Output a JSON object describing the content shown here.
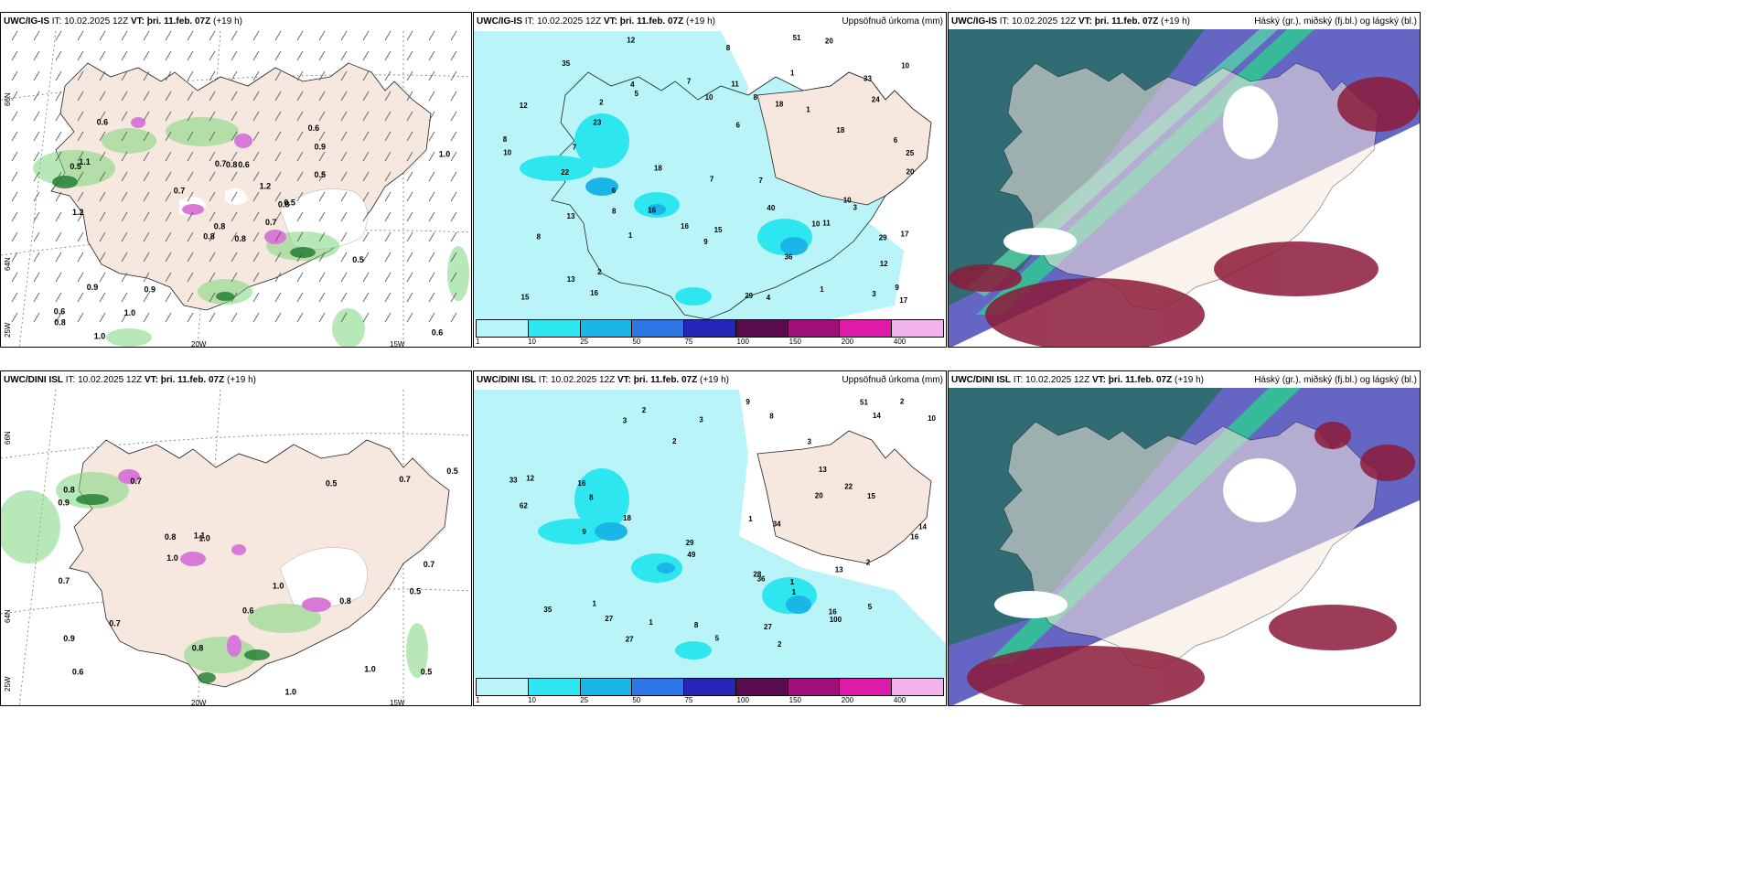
{
  "panels": [
    {
      "id": "p1",
      "title_model": "UWC/IG-IS",
      "title_it": "IT: 10.02.2025 12Z",
      "title_vt": "VT: þri. 11.feb. 07Z",
      "title_h": "(+19 h)",
      "title_right": "",
      "kind": "wind"
    },
    {
      "id": "p2",
      "title_model": "UWC/IG-IS",
      "title_it": "IT: 10.02.2025 12Z",
      "title_vt": "VT: þri. 11.feb. 07Z",
      "title_h": "(+19 h)",
      "title_right": "Uppsöfnuð úrkoma (mm)",
      "kind": "precip"
    },
    {
      "id": "p3",
      "title_model": "UWC/IG-IS",
      "title_it": "IT: 10.02.2025 12Z",
      "title_vt": "VT: þri. 11.feb. 07Z",
      "title_h": "(+19 h)",
      "title_right": "Háský (gr.), miðský (fj.bl.) og lágský (bl.)",
      "kind": "cloud"
    },
    {
      "id": "p4",
      "title_model": "UWC/DINI ISL",
      "title_it": "IT: 10.02.2025 12Z",
      "title_vt": "VT: þri. 11.feb. 07Z",
      "title_h": "(+19 h)",
      "title_right": "",
      "kind": "wind"
    },
    {
      "id": "p5",
      "title_model": "UWC/DINI ISL",
      "title_it": "IT: 10.02.2025 12Z",
      "title_vt": "VT: þri. 11.feb. 07Z",
      "title_h": "(+19 h)",
      "title_right": "Uppsöfnuð úrkoma (mm)",
      "kind": "precip"
    },
    {
      "id": "p6",
      "title_model": "UWC/DINI ISL",
      "title_it": "IT: 10.02.2025 12Z",
      "title_vt": "VT: þri. 11.feb. 07Z",
      "title_h": "(+19 h)",
      "title_right": "Háský (gr.), miðský (fj.bl.) og lágský (bl.)",
      "kind": "cloud"
    }
  ],
  "graticule": {
    "lat_66": "66N",
    "lat_64": "64N",
    "lon_25": "25W",
    "lon_20": "20W",
    "lon_15": "15W"
  },
  "precip_colorbar": {
    "ticks": [
      "1",
      "10",
      "25",
      "50",
      "75",
      "100",
      "150",
      "200",
      "400"
    ],
    "colors": [
      "#b9f5f8",
      "#2ee6f0",
      "#1bb6e8",
      "#2d78e6",
      "#2626b8",
      "#5a0a4e",
      "#a0107a",
      "#e01aa8",
      "#f3b3ee"
    ]
  },
  "colors": {
    "land": "#f6e8de",
    "ocean": "#ffffff",
    "precip_light": "#b9f5f8",
    "precip_mid": "#2ee6f0",
    "precip_heavy": "#1bb6e8",
    "cloud_high": "#2bcf8f",
    "cloud_mid": "#4a4ab8",
    "cloud_low": "#8c1a3a",
    "wind_green": "#7dd67d",
    "snow_pink": "#d879d8"
  },
  "wind_labels_top": [
    "0.8",
    "0.5",
    "0.8",
    "0.6",
    "0.8",
    "0.9",
    "0.6",
    "0.6",
    "0.9",
    "0.7",
    "0.6",
    "0.6",
    "1.2",
    "1.0",
    "0.8",
    "0.5",
    "1.0",
    "0.7",
    "1.2",
    "0.9",
    "0.7",
    "0.8",
    "1.0",
    "0.8",
    "0.5",
    "0.5",
    "1.1"
  ],
  "wind_labels_bottom": [
    "0.8",
    "0.5",
    "0.6",
    "0.7",
    "1.0",
    "1.0",
    "0.9",
    "0.5",
    "0.8",
    "1.0",
    "0.9",
    "0.7",
    "0.8",
    "0.5",
    "0.8",
    "0.7",
    "0.6",
    "1.0",
    "1.1",
    "0.7",
    "0.5",
    "0.7",
    "1.0"
  ],
  "precip_labels_top": [
    "5",
    "6",
    "18",
    "25",
    "18",
    "17",
    "16",
    "51",
    "29",
    "33",
    "23",
    "3",
    "18",
    "1",
    "8",
    "7",
    "6",
    "8",
    "12",
    "7",
    "9",
    "11",
    "13",
    "13",
    "6",
    "20",
    "15",
    "36",
    "29",
    "10",
    "16",
    "17",
    "22",
    "8",
    "7",
    "10",
    "20",
    "40",
    "24",
    "10",
    "4",
    "12",
    "16",
    "15",
    "12",
    "35",
    "8",
    "1",
    "4",
    "2",
    "3",
    "2",
    "1",
    "1",
    "8",
    "9",
    "10",
    "10",
    "11",
    "7"
  ],
  "precip_labels_bottom": [
    "2",
    "3",
    "1",
    "16",
    "22",
    "27",
    "16",
    "18",
    "49",
    "27",
    "35",
    "33",
    "29",
    "28",
    "20",
    "51",
    "62",
    "14",
    "13",
    "15",
    "16",
    "36",
    "27",
    "100",
    "34",
    "13",
    "9",
    "8",
    "5",
    "2",
    "1",
    "2",
    "3",
    "1",
    "2",
    "8",
    "9",
    "12",
    "14",
    "1",
    "3",
    "1",
    "10",
    "5",
    "8",
    "2"
  ]
}
